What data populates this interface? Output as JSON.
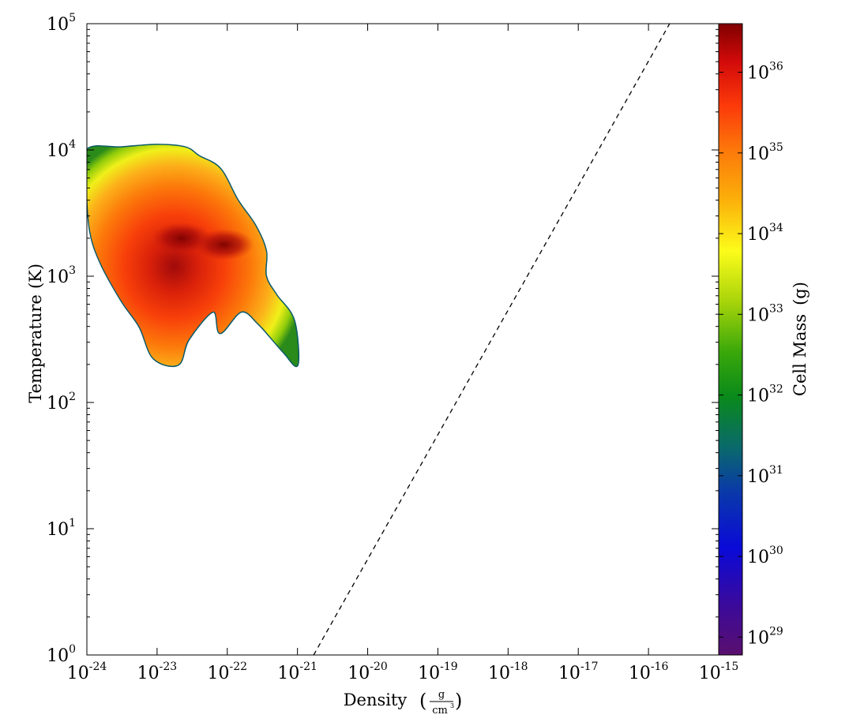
{
  "chart_data": {
    "type": "heatmap",
    "title": "",
    "x_axis": {
      "label": "Density",
      "unit_numerator": "g",
      "unit_denominator": "cm",
      "unit_denominator_exp": "3",
      "scale": "log",
      "range": [
        1e-24,
        1e-15
      ],
      "tick_exponents": [
        "-24",
        "-23",
        "-22",
        "-21",
        "-20",
        "-19",
        "-18",
        "-17",
        "-16",
        "-15"
      ]
    },
    "y_axis": {
      "label": "Temperature",
      "unit": "(K)",
      "scale": "log",
      "range": [
        1,
        100000
      ],
      "tick_exponents": [
        "0",
        "1",
        "2",
        "3",
        "4",
        "5"
      ]
    },
    "colorbar": {
      "label": "Cell Mass",
      "unit": "(g)",
      "scale": "log",
      "range": [
        6e+28,
        4e+36
      ],
      "colormap": "spectral",
      "tick_exponents": [
        "29",
        "30",
        "31",
        "32",
        "33",
        "34",
        "35",
        "36"
      ]
    },
    "reference_line": {
      "style": "dashed",
      "color": "#000000",
      "points": [
        [
          1.7e-21,
          1
        ],
        [
          2e-16,
          100000
        ]
      ]
    },
    "distribution": {
      "description_values": "log10 cell mass (g) over log10 density / log10 temperature",
      "boundary_left_edge": [
        [
          -24.0,
          4.0
        ],
        [
          -24.0,
          3.7
        ],
        [
          -23.95,
          3.35
        ],
        [
          -23.8,
          3.1
        ]
      ],
      "peaks": [
        {
          "log_density": -22.65,
          "log_temperature": 3.3,
          "log_mass": 36.6
        },
        {
          "log_density": -22.05,
          "log_temperature": 3.25,
          "log_mass": 36.4
        }
      ],
      "outline": [
        [
          -24.0,
          4.0
        ],
        [
          -23.5,
          4.02
        ],
        [
          -23.0,
          4.04
        ],
        [
          -22.6,
          4.02
        ],
        [
          -22.4,
          3.95
        ],
        [
          -22.1,
          3.85
        ],
        [
          -21.85,
          3.6
        ],
        [
          -21.6,
          3.4
        ],
        [
          -21.45,
          3.2
        ],
        [
          -21.45,
          3.0
        ],
        [
          -21.3,
          2.85
        ],
        [
          -21.05,
          2.65
        ],
        [
          -21.0,
          2.3
        ],
        [
          -21.2,
          2.4
        ],
        [
          -21.55,
          2.62
        ],
        [
          -21.8,
          2.72
        ],
        [
          -22.1,
          2.55
        ],
        [
          -22.2,
          2.72
        ],
        [
          -22.55,
          2.5
        ],
        [
          -22.7,
          2.3
        ],
        [
          -23.05,
          2.35
        ],
        [
          -23.25,
          2.6
        ],
        [
          -23.5,
          2.8
        ],
        [
          -23.8,
          3.1
        ],
        [
          -23.95,
          3.35
        ],
        [
          -24.0,
          3.7
        ]
      ]
    }
  }
}
